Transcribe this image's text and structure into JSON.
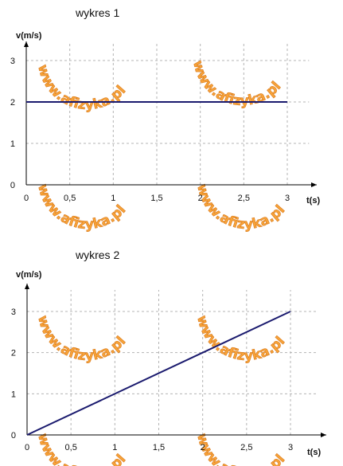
{
  "watermark": {
    "text": "www.afizyka.pl",
    "color": "#f7a33a"
  },
  "chart_data": [
    {
      "type": "line",
      "title": "wykres 1",
      "xlabel": "t(s)",
      "ylabel": "v(m/s)",
      "xlim": [
        0,
        3.25
      ],
      "ylim": [
        0,
        3.5
      ],
      "x_ticks": [
        0,
        0.5,
        1,
        1.5,
        2,
        2.5,
        3
      ],
      "x_tick_labels": [
        "0",
        "0,5",
        "1",
        "1,5",
        "2",
        "2,5",
        "3"
      ],
      "y_ticks": [
        0,
        1,
        2,
        3
      ],
      "y_tick_labels": [
        "0",
        "1",
        "2",
        "3"
      ],
      "grid": true,
      "series": [
        {
          "x": [
            0,
            3
          ],
          "y": [
            2,
            2
          ],
          "color": "#1a1a6e"
        }
      ]
    },
    {
      "type": "line",
      "title": "wykres 2",
      "xlabel": "t(s)",
      "ylabel": "v(m/s)",
      "xlim": [
        0,
        3.3
      ],
      "ylim": [
        0,
        3.6
      ],
      "x_ticks": [
        0,
        0.5,
        1,
        1.5,
        2,
        2.5,
        3
      ],
      "x_tick_labels": [
        "0",
        "0,5",
        "1",
        "1,5",
        "2",
        "2,5",
        "3"
      ],
      "y_ticks": [
        0,
        1,
        2,
        3
      ],
      "y_tick_labels": [
        "0",
        "1",
        "2",
        "3"
      ],
      "grid": true,
      "series": [
        {
          "x": [
            0,
            3
          ],
          "y": [
            0,
            3
          ],
          "color": "#1a1a6e"
        }
      ]
    }
  ]
}
